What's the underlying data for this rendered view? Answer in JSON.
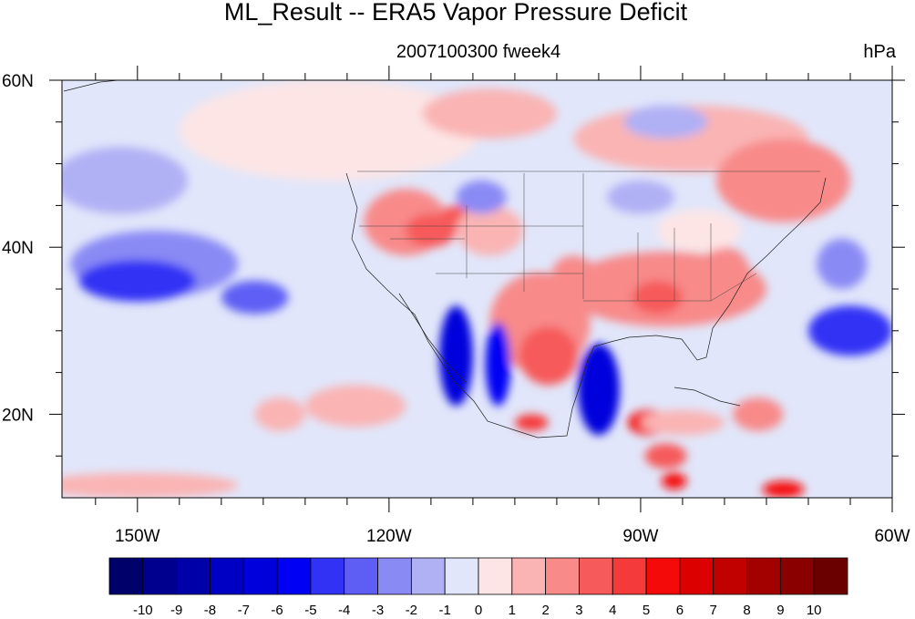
{
  "chart_data": {
    "type": "heatmap",
    "title": "ML_Result -- ERA5 Vapor Pressure Deficit",
    "subtitle": "2007100300 fweek4",
    "units": "hPa",
    "x_ticks": [
      "150W",
      "120W",
      "90W",
      "60W"
    ],
    "x_tick_values": [
      -150,
      -120,
      -90,
      -60
    ],
    "xlim": [
      -159,
      -60
    ],
    "y_ticks": [
      "20N",
      "40N",
      "60N"
    ],
    "y_tick_values": [
      20,
      40,
      60
    ],
    "ylim": [
      10,
      60
    ],
    "colorbar": {
      "levels": [
        "-10",
        "-9",
        "-8",
        "-7",
        "-6",
        "-5",
        "-4",
        "-3",
        "-2",
        "-1",
        "0",
        "1",
        "2",
        "3",
        "4",
        "5",
        "6",
        "7",
        "8",
        "9",
        "10"
      ],
      "colors": [
        "#00006b",
        "#00008e",
        "#0000a8",
        "#0000c4",
        "#0000dc",
        "#0000f5",
        "#3232f5",
        "#5e5ef5",
        "#8a8af5",
        "#b0b0f5",
        "#e1e6fa",
        "#fde5e5",
        "#fab4b4",
        "#f88a8a",
        "#f65a5a",
        "#f53a3a",
        "#f50a0a",
        "#dd0000",
        "#c10000",
        "#a30000",
        "#8a0000",
        "#6b0000"
      ]
    },
    "regions": [
      {
        "lon": -127,
        "lat": 54,
        "rx": 18,
        "ry": 6,
        "value": 1
      },
      {
        "lon": -84,
        "lat": 53,
        "rx": 14,
        "ry": 4,
        "value": 1.5
      },
      {
        "lon": -73,
        "lat": 48,
        "rx": 8,
        "ry": 5,
        "value": 2.5
      },
      {
        "lon": -108,
        "lat": 56,
        "rx": 8,
        "ry": 3,
        "value": 1.5
      },
      {
        "lon": -118,
        "lat": 43,
        "rx": 5,
        "ry": 4,
        "value": 2.5
      },
      {
        "lon": -115,
        "lat": 42,
        "rx": 3,
        "ry": 2,
        "value": 4
      },
      {
        "lon": -112,
        "lat": 43.5,
        "rx": 2,
        "ry": 1.5,
        "value": 3.5
      },
      {
        "lon": -108,
        "lat": 42,
        "rx": 4,
        "ry": 3,
        "value": 2
      },
      {
        "lon": -102,
        "lat": 31,
        "rx": 6,
        "ry": 6,
        "value": 2.5
      },
      {
        "lon": -101,
        "lat": 27,
        "rx": 3.5,
        "ry": 3.5,
        "value": 4
      },
      {
        "lon": -98,
        "lat": 37,
        "rx": 2.5,
        "ry": 2,
        "value": 3
      },
      {
        "lon": -87,
        "lat": 35,
        "rx": 12,
        "ry": 4.5,
        "value": 2.5
      },
      {
        "lon": -88,
        "lat": 34,
        "rx": 3,
        "ry": 2,
        "value": 3.5
      },
      {
        "lon": -80,
        "lat": 37,
        "rx": 3,
        "ry": 3,
        "value": 3
      },
      {
        "lon": -83,
        "lat": 42,
        "rx": 5,
        "ry": 2.5,
        "value": 1
      },
      {
        "lon": -89,
        "lat": 19,
        "rx": 2.5,
        "ry": 1.5,
        "value": 6
      },
      {
        "lon": -87,
        "lat": 15,
        "rx": 2.5,
        "ry": 1.5,
        "value": 4
      },
      {
        "lon": -86,
        "lat": 12,
        "rx": 1.5,
        "ry": 1,
        "value": 6
      },
      {
        "lon": -103,
        "lat": 19,
        "rx": 2,
        "ry": 1,
        "value": 5
      },
      {
        "lon": -85,
        "lat": 19,
        "rx": 5,
        "ry": 1.5,
        "value": 1.5
      },
      {
        "lon": -76,
        "lat": 20,
        "rx": 3,
        "ry": 2,
        "value": 2.5
      },
      {
        "lon": -73,
        "lat": 11,
        "rx": 2.5,
        "ry": 1,
        "value": 6
      },
      {
        "lon": -124,
        "lat": 21,
        "rx": 6,
        "ry": 2.5,
        "value": 1.5
      },
      {
        "lon": -133,
        "lat": 20,
        "rx": 3,
        "ry": 2,
        "value": 1.5
      },
      {
        "lon": -150,
        "lat": 11.5,
        "rx": 12,
        "ry": 1.5,
        "value": 1.5
      },
      {
        "lon": -148,
        "lat": 38,
        "rx": 10,
        "ry": 4,
        "value": -2
      },
      {
        "lon": -150,
        "lat": 36,
        "rx": 7,
        "ry": 2.5,
        "value": -4
      },
      {
        "lon": -136,
        "lat": 34,
        "rx": 4,
        "ry": 2,
        "value": -3
      },
      {
        "lon": -152,
        "lat": 48,
        "rx": 8,
        "ry": 4,
        "value": -1.5
      },
      {
        "lon": -112,
        "lat": 27,
        "rx": 2,
        "ry": 6,
        "value": -6
      },
      {
        "lon": -107,
        "lat": 26,
        "rx": 1.5,
        "ry": 5,
        "value": -5
      },
      {
        "lon": -95,
        "lat": 23,
        "rx": 2.5,
        "ry": 5.5,
        "value": -6
      },
      {
        "lon": -109,
        "lat": 46,
        "rx": 3,
        "ry": 2,
        "value": -2.5
      },
      {
        "lon": -90,
        "lat": 46,
        "rx": 4,
        "ry": 2,
        "value": -1.5
      },
      {
        "lon": -65,
        "lat": 30,
        "rx": 5,
        "ry": 3,
        "value": -4
      },
      {
        "lon": -66,
        "lat": 38,
        "rx": 3,
        "ry": 3,
        "value": -2.5
      },
      {
        "lon": -87,
        "lat": 55,
        "rx": 5,
        "ry": 2,
        "value": -1.5
      }
    ]
  }
}
